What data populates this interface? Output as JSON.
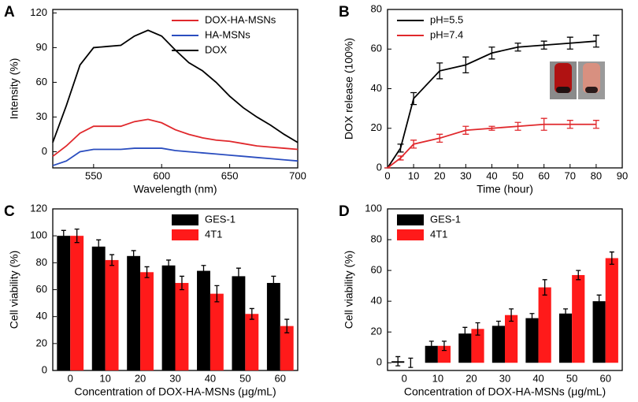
{
  "chart_data": [
    {
      "type": "line",
      "panel_label": "A",
      "xlabel": "Wavelength (nm)",
      "ylabel": "Intensity (%)",
      "x": [
        520,
        530,
        540,
        550,
        560,
        570,
        580,
        590,
        600,
        610,
        620,
        630,
        640,
        650,
        660,
        670,
        680,
        690,
        700
      ],
      "xlim": [
        520,
        700
      ],
      "xticks": [
        550,
        600,
        650,
        700
      ],
      "ylim": [
        -14,
        123
      ],
      "yticks": [
        0,
        30,
        60,
        90,
        120
      ],
      "legend": "upper right",
      "series": [
        {
          "name": "DOX-HA-MSNs",
          "color": "#e0282c",
          "values": [
            -4,
            5,
            16,
            22,
            22,
            22,
            26,
            28,
            25,
            19,
            15,
            12,
            10,
            9,
            7,
            5,
            4,
            3,
            2
          ]
        },
        {
          "name": "HA-MSNs",
          "color": "#2a4dbf",
          "values": [
            -12,
            -8,
            0,
            2,
            2,
            2,
            3,
            3,
            3,
            1,
            0,
            -1,
            -2,
            -3,
            -4,
            -5,
            -6,
            -7,
            -8
          ]
        },
        {
          "name": "DOX",
          "color": "#000000",
          "values": [
            8,
            40,
            75,
            90,
            91,
            92,
            100,
            105,
            100,
            88,
            77,
            70,
            60,
            48,
            38,
            30,
            23,
            15,
            8
          ]
        }
      ]
    },
    {
      "type": "line",
      "panel_label": "B",
      "xlabel": "Time (hour)",
      "ylabel": "DOX release (100%)",
      "x": [
        0,
        5,
        10,
        20,
        30,
        40,
        50,
        60,
        70,
        80
      ],
      "xlim": [
        0,
        90
      ],
      "xticks": [
        0,
        10,
        20,
        30,
        40,
        50,
        60,
        70,
        80,
        90
      ],
      "ylim": [
        0,
        80
      ],
      "yticks": [
        0,
        20,
        40,
        60,
        80
      ],
      "legend": "upper left",
      "series": [
        {
          "name": "pH=5.5",
          "color": "#000000",
          "values": [
            0,
            10,
            35,
            49,
            52,
            58,
            61,
            62,
            63,
            64
          ],
          "errors": [
            0,
            2,
            3,
            4,
            4,
            3,
            2,
            2,
            3,
            3
          ]
        },
        {
          "name": "pH=7.4",
          "color": "#e0282c",
          "values": [
            0,
            5,
            12,
            15,
            19,
            20,
            21,
            22,
            22,
            22
          ],
          "errors": [
            0,
            1,
            2,
            2,
            2,
            1,
            2,
            3,
            2,
            2
          ]
        }
      ]
    },
    {
      "type": "bar",
      "panel_label": "C",
      "xlabel": "Concentration of DOX-HA-MSNs (μg/mL)",
      "ylabel": "Cell viability (%)",
      "categories": [
        "0",
        "10",
        "20",
        "30",
        "40",
        "50",
        "60"
      ],
      "ylim": [
        0,
        120
      ],
      "yticks": [
        0,
        20,
        40,
        60,
        80,
        100,
        120
      ],
      "legend": "upper right",
      "series": [
        {
          "name": "GES-1",
          "color": "#000000",
          "values": [
            100,
            92,
            85,
            78,
            74,
            70,
            65
          ],
          "errors": [
            4,
            5,
            4,
            4,
            4,
            6,
            5
          ]
        },
        {
          "name": "4T1",
          "color": "#ff1a1a",
          "values": [
            100,
            82,
            73,
            65,
            57,
            42,
            33
          ],
          "errors": [
            5,
            4,
            4,
            5,
            6,
            4,
            5
          ]
        }
      ]
    },
    {
      "type": "bar",
      "panel_label": "D",
      "xlabel": "Concentration of DOX-HA-MSNs (μg/mL)",
      "ylabel": "Cell viability (%)",
      "categories": [
        "0",
        "10",
        "20",
        "30",
        "40",
        "50",
        "60"
      ],
      "ylim": [
        -5,
        100
      ],
      "yticks": [
        0,
        20,
        40,
        60,
        80,
        100
      ],
      "legend": "upper left",
      "series": [
        {
          "name": "GES-1",
          "color": "#000000",
          "values": [
            1,
            11,
            19,
            24,
            29,
            32,
            40
          ],
          "errors": [
            3,
            3,
            4,
            3,
            3,
            3,
            4
          ]
        },
        {
          "name": "4T1",
          "color": "#ff1a1a",
          "values": [
            0,
            11,
            22,
            31,
            49,
            57,
            68
          ],
          "errors": [
            3,
            3,
            4,
            4,
            5,
            3,
            4
          ]
        }
      ]
    }
  ]
}
